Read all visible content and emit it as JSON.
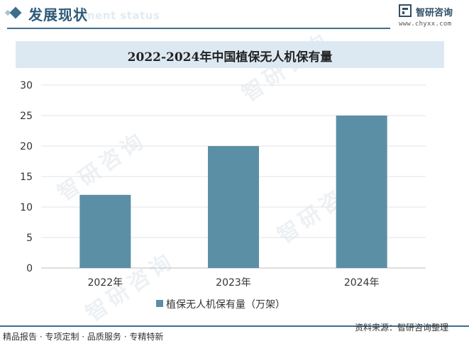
{
  "header": {
    "section_title": "发展现状",
    "section_subtitle": "ment status",
    "brand_name": "智研咨询",
    "brand_url": "www.chyxx.com"
  },
  "watermark": {
    "text": "智研咨询"
  },
  "chart_data": {
    "type": "bar",
    "title": "2022-2024年中国植保无人机保有量",
    "categories": [
      "2022年",
      "2023年",
      "2024年"
    ],
    "series": [
      {
        "name": "植保无人机保有量（万架）",
        "values": [
          12,
          20,
          25
        ],
        "color": "#5b8fa6"
      }
    ],
    "ylim": [
      0,
      30
    ],
    "yticks": [
      0,
      5,
      10,
      15,
      20,
      25,
      30
    ],
    "grid": true,
    "legend_position": "bottom"
  },
  "footer": {
    "left_text": "精品报告 · 专项定制 · 品质服务 · 专精特新",
    "source_text": "资料来源：智研咨询整理"
  }
}
